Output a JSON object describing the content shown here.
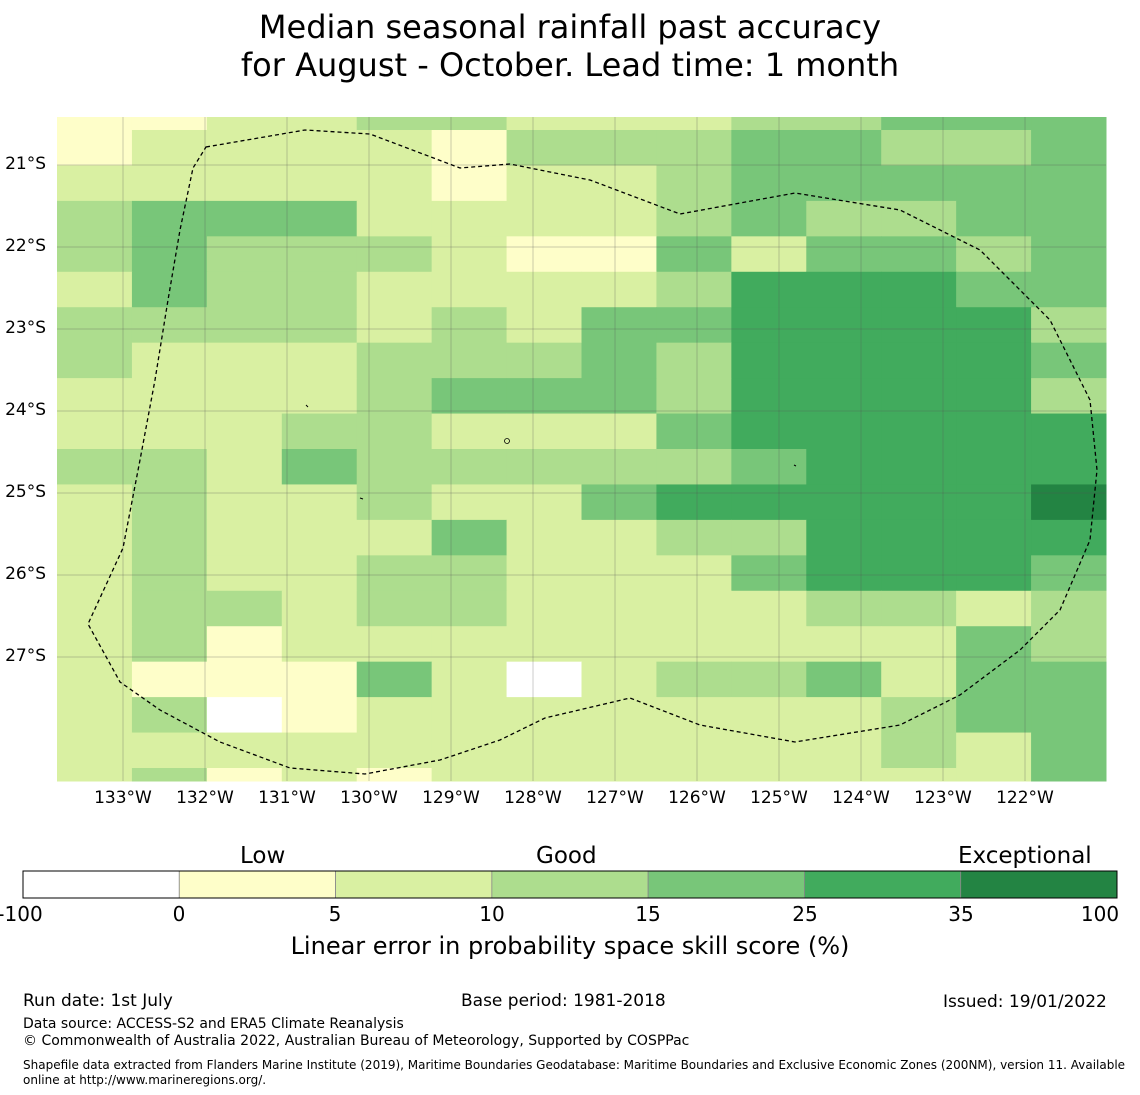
{
  "title_line1": "Median seasonal rainfall past accuracy",
  "title_line2": "for August - October. Lead time: 1 month",
  "map": {
    "lat_labels": [
      "21°S",
      "22°S",
      "23°S",
      "24°S",
      "25°S",
      "26°S",
      "27°S"
    ],
    "lon_labels": [
      "133°W",
      "132°W",
      "131°W",
      "130°W",
      "129°W",
      "128°W",
      "127°W",
      "126°W",
      "125°W",
      "124°W",
      "123°W",
      "122°W"
    ],
    "cell_colors": [
      "#ffffff",
      "#fefec9",
      "#d9f0a2",
      "#addd8e",
      "#78c679",
      "#41ab5d",
      "#238443"
    ],
    "grid_rows": [
      "11223322233444",
      "12222133344334",
      "22222122344444",
      "34442222343344",
      "34333211424434",
      "24332222355544",
      "33332324455553",
      "32223334355554",
      "22223444355553",
      "22233222455555",
      "33243333345555",
      "23223224555556",
      "23222422335555",
      "23223322245554",
      "23323322223323",
      "23122222222243",
      "21114202334244",
      "23012222222344",
      "22222222222324",
      "23121222222224"
    ]
  },
  "colorbar": {
    "categories": [
      "Low",
      "Good",
      "Exceptional"
    ],
    "ticks": [
      "-100",
      "0",
      "5",
      "10",
      "15",
      "25",
      "35",
      "100"
    ],
    "colors": [
      "#ffffff",
      "#fefec9",
      "#d9f0a2",
      "#addd8e",
      "#78c679",
      "#41ab5d",
      "#238443"
    ],
    "label": "Linear error in probability space skill score (%)"
  },
  "footer": {
    "run_date": "Run date: 1st July",
    "base_period": "Base period: 1981-2018",
    "issued": "Issued: 19/01/2022",
    "data_source": "Data source: ACCESS-S2 and ERA5 Climate Reanalysis",
    "copyright": "© Commonwealth of Australia 2022, Australian Bureau of Meteorology, Supported by COSPPac",
    "shapefile_line1": "Shapefile data extracted from Flanders Marine Institute (2019), Maritime Boundaries Geodatabase: Maritime Boundaries and Exclusive Economic Zones (200NM), version 11. Available",
    "shapefile_line2": "online at http://www.marineregions.org/."
  }
}
